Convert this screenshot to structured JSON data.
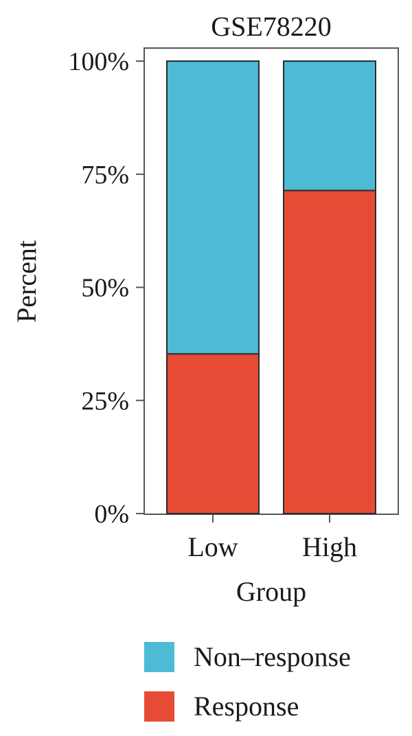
{
  "chart_data": {
    "type": "bar",
    "stacked": true,
    "title": "GSE78220",
    "xlabel": "Group",
    "ylabel": "Percent",
    "categories": [
      "Low",
      "High"
    ],
    "ylim": [
      0,
      100
    ],
    "yticks": [
      "0%",
      "25%",
      "50%",
      "75%",
      "100%"
    ],
    "ytick_values": [
      0,
      25,
      50,
      75,
      100
    ],
    "series": [
      {
        "name": "Response",
        "values": [
          35.3,
          71.4
        ],
        "color": "#e64b35"
      },
      {
        "name": "Non–response",
        "values": [
          64.7,
          28.6
        ],
        "color": "#4dbbd5"
      }
    ],
    "legend": {
      "position": "bottom",
      "items": [
        {
          "label": "Non–response",
          "color": "#4dbbd5"
        },
        {
          "label": "Response",
          "color": "#e64b35"
        }
      ]
    },
    "grid": false
  }
}
